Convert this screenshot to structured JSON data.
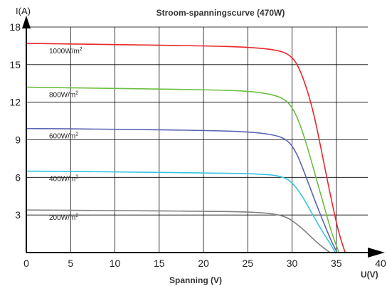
{
  "chart_data": {
    "type": "line",
    "title": "Stroom-spanningscurve (470W)",
    "xlabel": "Spanning (V)",
    "x_unit_label": "U(V)",
    "y_unit_label": "I(A)",
    "xlim": [
      0,
      40
    ],
    "ylim": [
      0,
      18
    ],
    "x_ticks": [
      0,
      5,
      10,
      15,
      20,
      25,
      30,
      35,
      40
    ],
    "y_ticks": [
      3,
      6,
      9,
      12,
      15,
      18
    ],
    "grid": true,
    "series": [
      {
        "name": "1000W/m2",
        "label_main": "1000W/m",
        "label_sup": "2",
        "color": "#e8262a",
        "x": [
          0,
          10,
          20,
          25,
          28,
          29.5,
          30.5,
          31.5,
          32.5,
          33.5,
          34.5,
          35.3,
          36
        ],
        "y": [
          16.7,
          16.6,
          16.5,
          16.4,
          16.2,
          15.9,
          15.2,
          13.5,
          11,
          7.5,
          4,
          1.5,
          0
        ]
      },
      {
        "name": "800W/m2",
        "label_main": "800W/m",
        "label_sup": "2",
        "color": "#6cbf3f",
        "x": [
          0,
          10,
          20,
          25,
          28,
          29.5,
          30.5,
          31.5,
          32.5,
          33.5,
          34.5,
          35.3
        ],
        "y": [
          13.2,
          13.1,
          13.0,
          12.9,
          12.6,
          12.1,
          11.0,
          9.0,
          6.5,
          4.0,
          1.5,
          0
        ]
      },
      {
        "name": "600W/m2",
        "label_main": "600W/m",
        "label_sup": "2",
        "color": "#5a64b3",
        "x": [
          0,
          10,
          20,
          25,
          28,
          29.5,
          30.5,
          31.5,
          32.5,
          33.5,
          34.5,
          35.1
        ],
        "y": [
          9.9,
          9.85,
          9.75,
          9.65,
          9.4,
          9.0,
          8.0,
          6.2,
          4.3,
          2.5,
          0.8,
          0
        ]
      },
      {
        "name": "400W/m2",
        "label_main": "400W/m",
        "label_sup": "2",
        "color": "#38c4e0",
        "x": [
          0,
          10,
          20,
          25,
          28,
          29.5,
          30.5,
          31.5,
          32.5,
          33.5,
          34.5,
          34.9
        ],
        "y": [
          6.5,
          6.45,
          6.35,
          6.3,
          6.2,
          5.9,
          5.2,
          4.1,
          2.8,
          1.6,
          0.5,
          0
        ]
      },
      {
        "name": "200W/m2",
        "label_main": "200W/m",
        "label_sup": "2",
        "color": "#808080",
        "x": [
          0,
          10,
          20,
          25,
          28,
          29.5,
          30.5,
          31.5,
          32.5,
          33.5,
          34.3
        ],
        "y": [
          3.4,
          3.35,
          3.3,
          3.25,
          3.1,
          2.8,
          2.3,
          1.7,
          1.0,
          0.4,
          0
        ]
      }
    ]
  }
}
